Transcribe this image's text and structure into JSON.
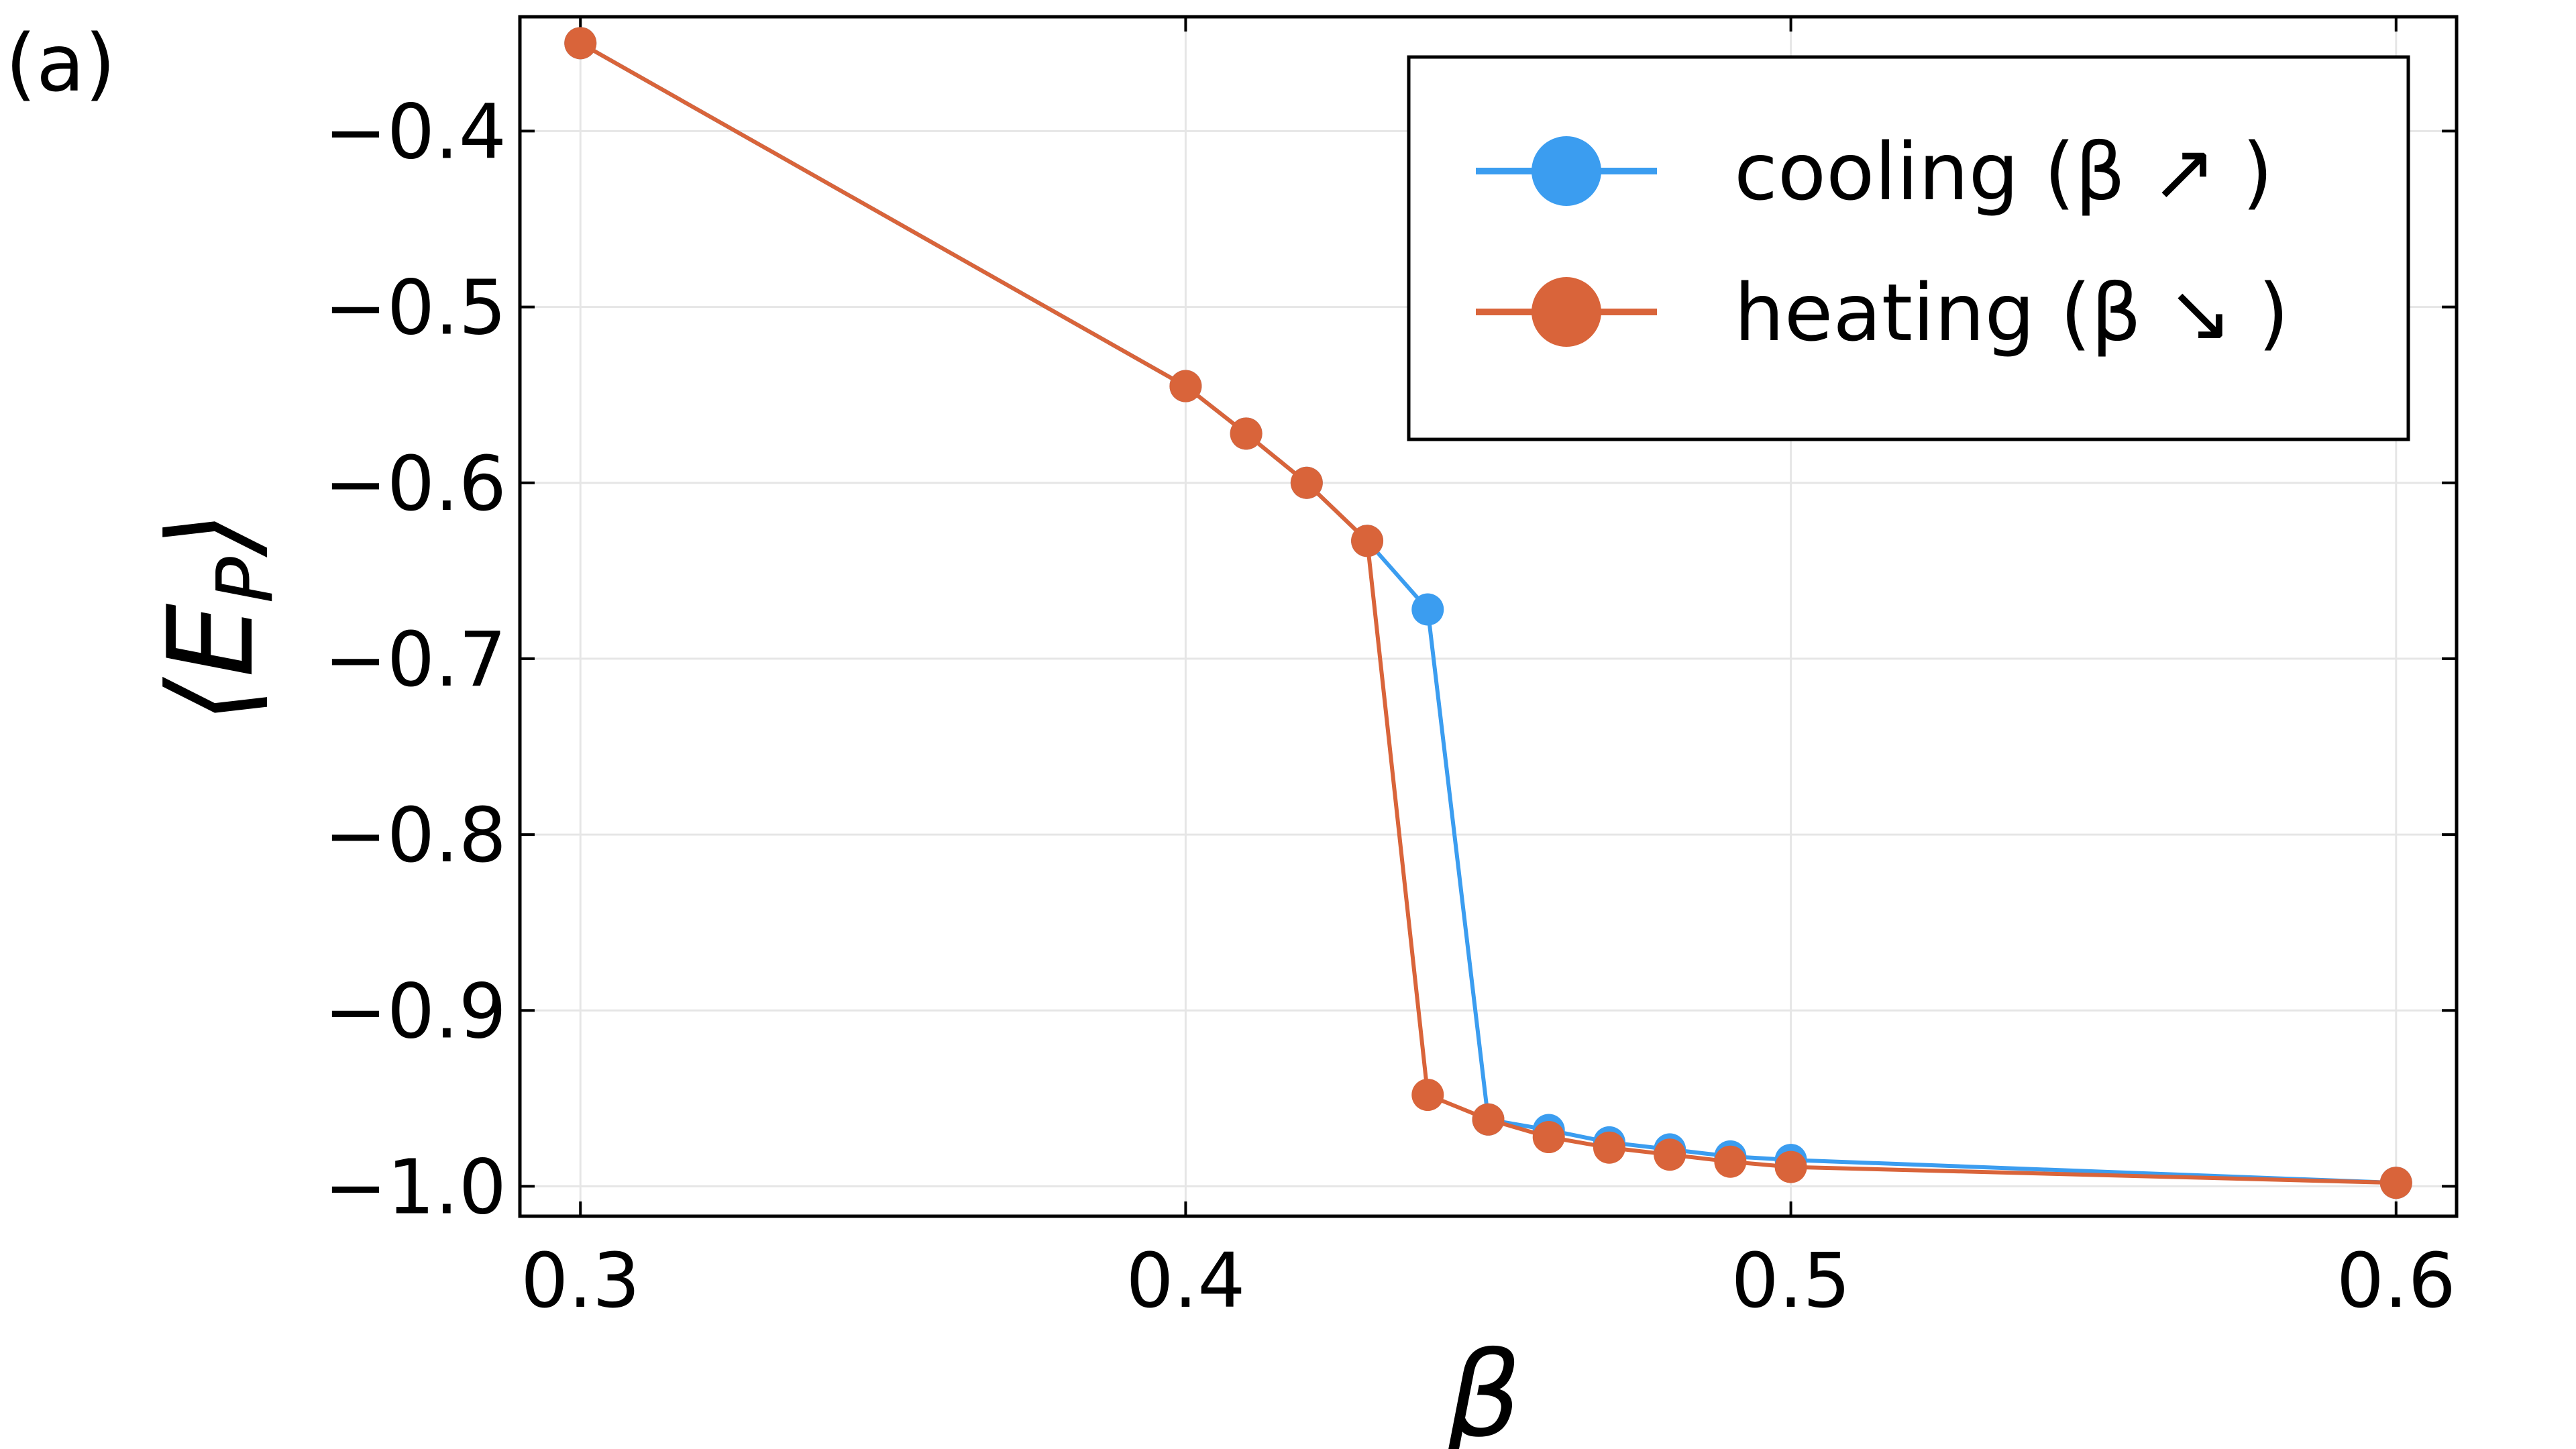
{
  "panel_label": "(a)",
  "chart_data": {
    "type": "line",
    "xlabel": "β",
    "ylabel": "⟨E",
    "ylabel_sub": "P",
    "ylabel_close": "⟩",
    "xlim": [
      0.29,
      0.61
    ],
    "ylim": [
      -1.017,
      -0.335
    ],
    "xticks": [
      0.3,
      0.4,
      0.5,
      0.6
    ],
    "xtick_labels": [
      "0.3",
      "0.4",
      "0.5",
      "0.6"
    ],
    "yticks": [
      -1.0,
      -0.9,
      -0.8,
      -0.7,
      -0.6,
      -0.5,
      -0.4
    ],
    "ytick_labels": [
      "−1.0",
      "−0.9",
      "−0.8",
      "−0.7",
      "−0.6",
      "−0.5",
      "−0.4"
    ],
    "grid": true,
    "legend_position": "top-right",
    "series": [
      {
        "name": "cooling (β ↗ )",
        "color": "#3b9df0",
        "x": [
          0.3,
          0.4,
          0.41,
          0.42,
          0.43,
          0.44,
          0.45,
          0.46,
          0.47,
          0.48,
          0.49,
          0.5,
          0.6
        ],
        "y": [
          -0.35,
          -0.545,
          -0.572,
          -0.6,
          -0.633,
          -0.672,
          -0.962,
          -0.968,
          -0.975,
          -0.979,
          -0.983,
          -0.985,
          -0.998
        ]
      },
      {
        "name": "heating (β ↘ )",
        "color": "#d9643a",
        "x": [
          0.3,
          0.4,
          0.41,
          0.42,
          0.43,
          0.44,
          0.45,
          0.46,
          0.47,
          0.48,
          0.49,
          0.5,
          0.6
        ],
        "y": [
          -0.35,
          -0.545,
          -0.572,
          -0.6,
          -0.633,
          -0.948,
          -0.962,
          -0.972,
          -0.978,
          -0.982,
          -0.986,
          -0.989,
          -0.998
        ]
      }
    ]
  }
}
